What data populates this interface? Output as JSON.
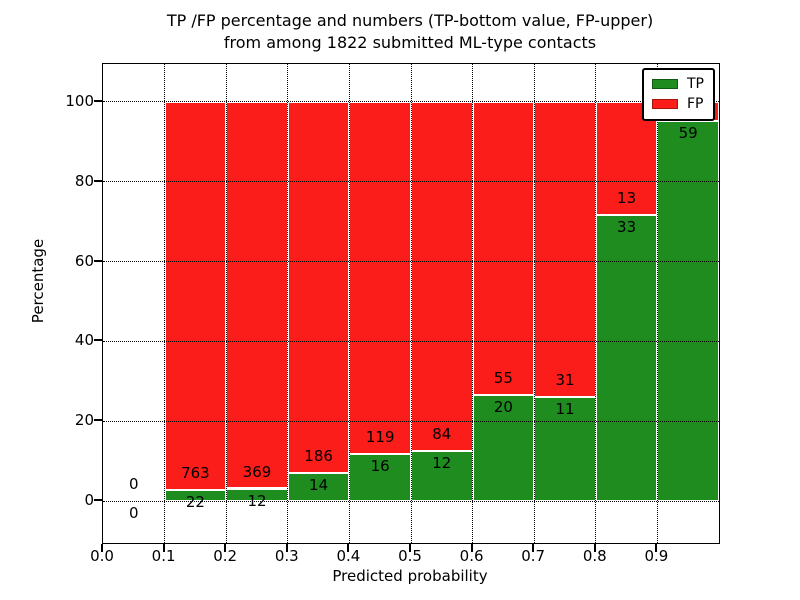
{
  "title": {
    "line1": "TP /FP percentage and numbers (TP-bottom value, FP-upper)",
    "line2": "from among 1822 submitted ML-type contacts"
  },
  "colors": {
    "tp": "#1e8c1e",
    "fp": "#fb1d1a",
    "text": "#000000",
    "background": "#ffffff"
  },
  "chart_data": {
    "type": "bar",
    "stacked": true,
    "title": "TP /FP percentage and numbers (TP-bottom value, FP-upper) from among 1822 submitted ML-type contacts",
    "xlabel": "Predicted probability",
    "ylabel": "Percentage",
    "xlim": [
      0.0,
      1.0
    ],
    "ylim": [
      -10.5,
      109.5
    ],
    "grid": true,
    "x_ticks": [
      "0.0",
      "0.1",
      "0.2",
      "0.3",
      "0.4",
      "0.5",
      "0.6",
      "0.7",
      "0.8",
      "0.9"
    ],
    "y_ticks": [
      0,
      20,
      40,
      60,
      80,
      100
    ],
    "legend": {
      "position": "upper right",
      "entries": [
        {
          "label": "TP",
          "color": "#1e8c1e"
        },
        {
          "label": "FP",
          "color": "#fb1d1a"
        }
      ]
    },
    "total_contacts": 1822,
    "bins": [
      {
        "x0": 0.0,
        "x1": 0.1,
        "tp": 0,
        "fp": 0,
        "tp_pct": 0.0,
        "fp_pct": 0.0
      },
      {
        "x0": 0.1,
        "x1": 0.2,
        "tp": 22,
        "fp": 763,
        "tp_pct": 2.8,
        "fp_pct": 97.2
      },
      {
        "x0": 0.2,
        "x1": 0.3,
        "tp": 12,
        "fp": 369,
        "tp_pct": 3.15,
        "fp_pct": 96.85
      },
      {
        "x0": 0.3,
        "x1": 0.4,
        "tp": 14,
        "fp": 186,
        "tp_pct": 7.0,
        "fp_pct": 93.0
      },
      {
        "x0": 0.4,
        "x1": 0.5,
        "tp": 16,
        "fp": 119,
        "tp_pct": 11.85,
        "fp_pct": 88.15
      },
      {
        "x0": 0.5,
        "x1": 0.6,
        "tp": 12,
        "fp": 84,
        "tp_pct": 12.5,
        "fp_pct": 87.5
      },
      {
        "x0": 0.6,
        "x1": 0.7,
        "tp": 20,
        "fp": 55,
        "tp_pct": 26.67,
        "fp_pct": 73.33
      },
      {
        "x0": 0.7,
        "x1": 0.8,
        "tp": 11,
        "fp": 31,
        "tp_pct": 26.19,
        "fp_pct": 73.81
      },
      {
        "x0": 0.8,
        "x1": 0.9,
        "tp": 33,
        "fp": 13,
        "tp_pct": 71.74,
        "fp_pct": 28.26
      },
      {
        "x0": 0.9,
        "x1": 1.0,
        "tp": 59,
        "fp": null,
        "tp_pct": 95.16,
        "fp_pct": 4.84
      }
    ]
  }
}
